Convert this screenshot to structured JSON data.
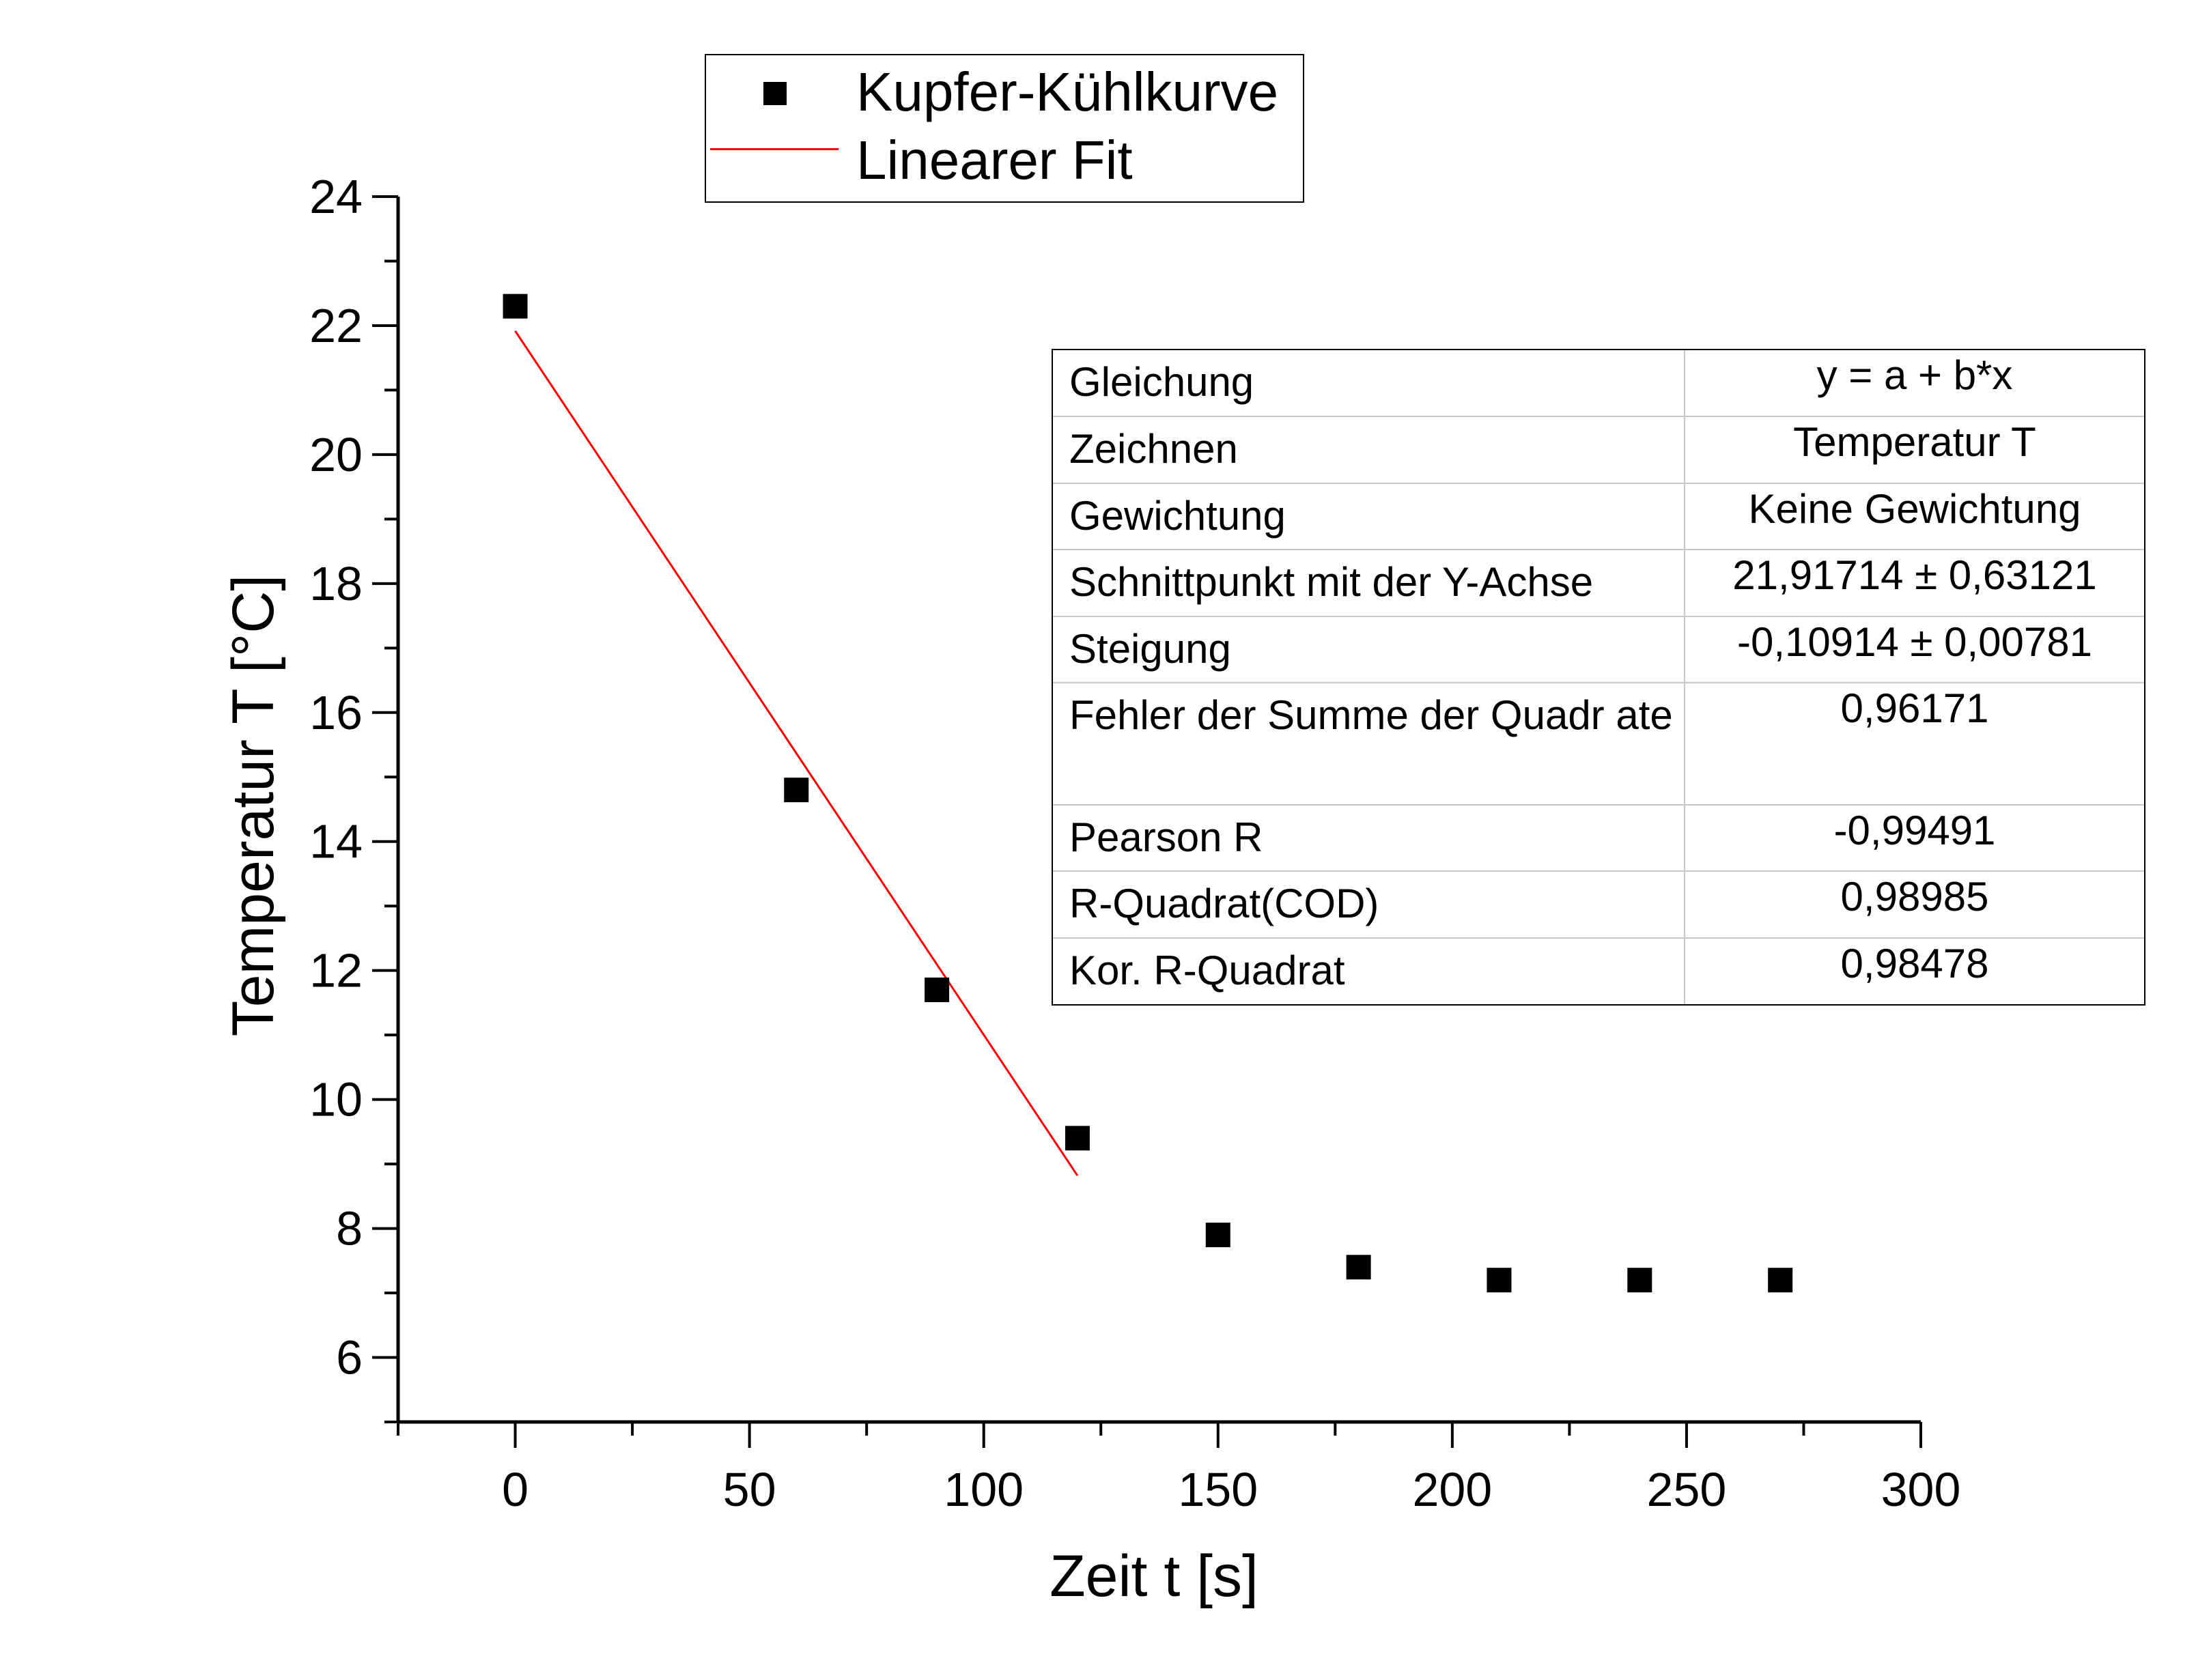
{
  "chart_data": {
    "type": "scatter",
    "xlabel": "Zeit t [s]",
    "ylabel": "Temperatur T [°C]",
    "xlim": [
      -25,
      300
    ],
    "ylim": [
      5,
      24
    ],
    "xticks": [
      0,
      50,
      100,
      150,
      200,
      250,
      300
    ],
    "yticks": [
      6,
      8,
      10,
      12,
      14,
      16,
      18,
      20,
      22,
      24
    ],
    "xtick_labels": [
      "0",
      "50",
      "100",
      "150",
      "200",
      "250",
      "300"
    ],
    "ytick_labels": [
      "6",
      "8",
      "10",
      "12",
      "14",
      "16",
      "18",
      "20",
      "22",
      "24"
    ],
    "grid": false,
    "legend_position": "top-center",
    "series": [
      {
        "name": "Kupfer-Kühlkurve",
        "kind": "scatter",
        "marker": "square",
        "color": "#000000",
        "x": [
          0,
          60,
          90,
          120,
          150,
          180,
          210,
          240,
          270
        ],
        "y": [
          22.3,
          14.8,
          11.7,
          9.4,
          7.9,
          7.4,
          7.2,
          7.2,
          7.2
        ]
      },
      {
        "name": "Linearer Fit",
        "kind": "line",
        "color": "#ff0000",
        "intercept": 21.91714,
        "slope": -0.10914,
        "x_range": [
          0,
          120
        ]
      }
    ],
    "fit_table": {
      "rows": [
        {
          "label": "Gleichung",
          "value": "y = a + b*x"
        },
        {
          "label": "Zeichnen",
          "value": "Temperatur T"
        },
        {
          "label": "Gewichtung",
          "value": "Keine Gewichtung"
        },
        {
          "label": "Schnittpunkt mit der Y-Achse",
          "value": "21,91714 ± 0,63121"
        },
        {
          "label": "Steigung",
          "value": "-0,10914 ± 0,00781"
        },
        {
          "label": "Fehler der Summe der Quadr ate",
          "value": "0,96171"
        },
        {
          "label": "Pearson R",
          "value": "-0,99491"
        },
        {
          "label": "R-Quadrat(COD)",
          "value": "0,98985"
        },
        {
          "label": "Kor. R-Quadrat",
          "value": "0,98478"
        }
      ]
    }
  }
}
